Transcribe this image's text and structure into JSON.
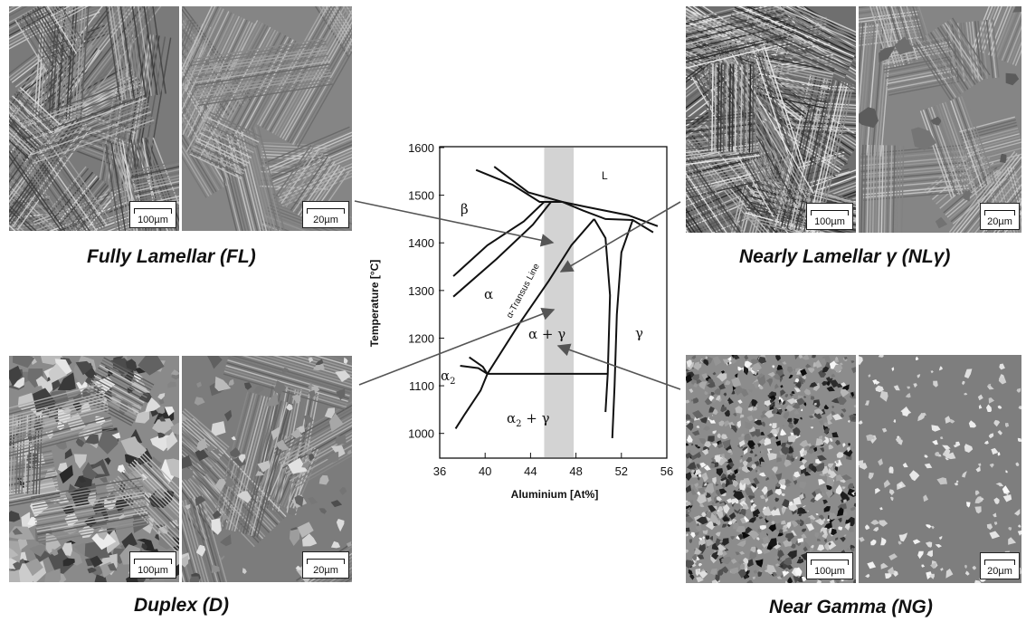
{
  "captions": {
    "fl": "Fully Lamellar (FL)",
    "nl": "Nearly Lamellar γ (NLγ)",
    "duplex": "Duplex (D)",
    "ng": "Near Gamma (NG)"
  },
  "scalebars": {
    "fl_low": "100µm",
    "fl_high": "20µm",
    "nl_low": "100µm",
    "nl_high": "20µm",
    "d_low": "100µm",
    "d_high": "20µm",
    "ng_low": "100µm",
    "ng_high": "20µm"
  },
  "phase_diagram": {
    "x_axis_label": "Aluminium [At%]",
    "y_axis_label": "Temperature [°C]",
    "x_ticks": [
      "36",
      "40",
      "44",
      "48",
      "52",
      "56"
    ],
    "y_ticks": [
      "1600",
      "1500",
      "1400",
      "1300",
      "1200",
      "1100",
      "1000"
    ],
    "phase_labels": {
      "L": "L",
      "beta": "β",
      "alpha": "α",
      "gamma": "γ",
      "alpha_gamma": "α + γ",
      "alpha2": "α",
      "alpha2_sub": "2",
      "alpha2_gamma": "α",
      "alpha2_gamma_sub": "2",
      "alpha2_gamma_rest": " + γ"
    },
    "transus_label": "α-Transus Line",
    "highlight_range": [
      45.2,
      47.8
    ]
  },
  "colors": {
    "highlight": "#d3d3d3",
    "arrow": "#555555"
  }
}
